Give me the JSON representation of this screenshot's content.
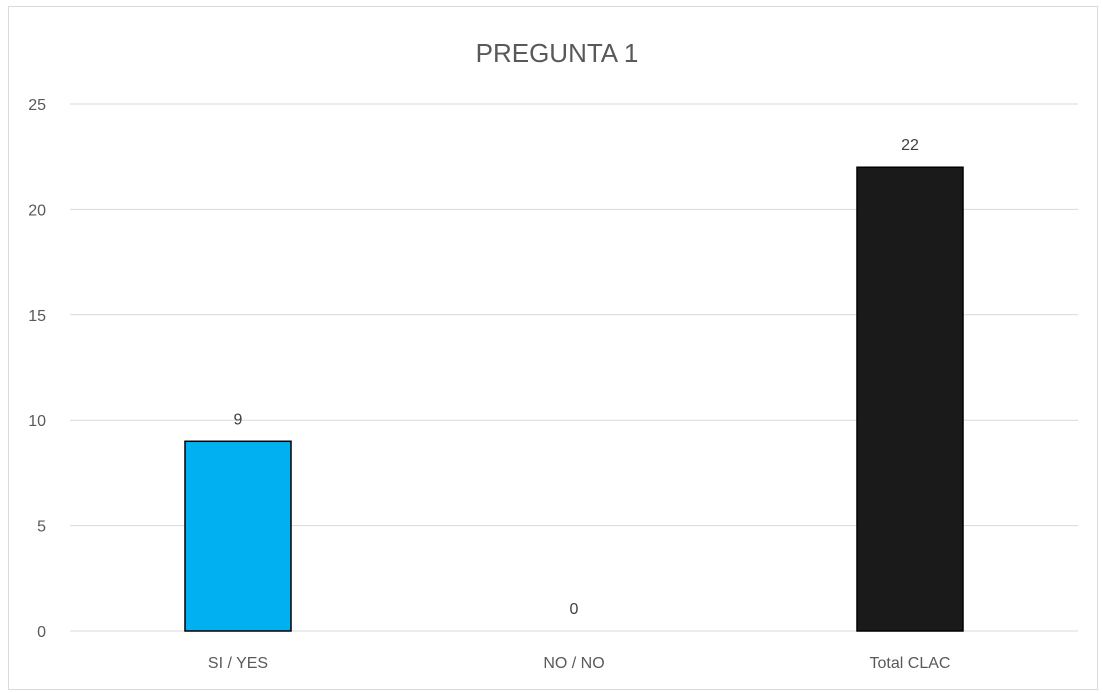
{
  "chart_data": {
    "type": "bar",
    "title": "PREGUNTA 1",
    "xlabel": "",
    "ylabel": "",
    "categories": [
      "SI / YES",
      "NO / NO",
      "Total CLAC"
    ],
    "values": [
      9,
      0,
      22
    ],
    "colors": [
      "#00b0f0",
      "#00b0f0",
      "#1a1a1a"
    ],
    "ylim": [
      0,
      25
    ],
    "yticks": [
      0,
      5,
      10,
      15,
      20,
      25
    ],
    "grid": true,
    "legend": "none"
  }
}
